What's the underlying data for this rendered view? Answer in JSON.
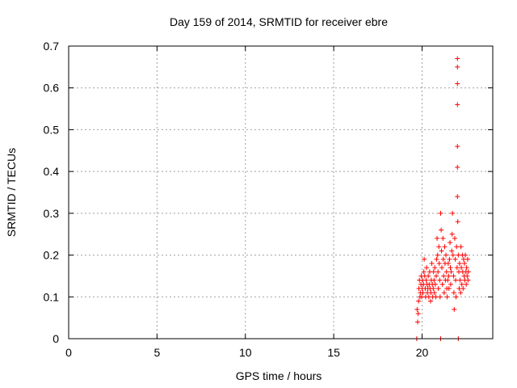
{
  "chart_data": {
    "type": "scatter",
    "title": "Day 159 of 2014, SRMTID for receiver ebre",
    "xlabel": "GPS time / hours",
    "ylabel": "SRMTID / TECUs",
    "xlim": [
      0,
      24
    ],
    "ylim": [
      0,
      0.7
    ],
    "grid": true,
    "marker": "+",
    "x_ticks": [
      0,
      5,
      10,
      15,
      20
    ],
    "x_tick_labels": [
      "0",
      "5",
      "10",
      "15",
      "20"
    ],
    "y_ticks": [
      0,
      0.1,
      0.2,
      0.3,
      0.4,
      0.5,
      0.6,
      0.7
    ],
    "y_tick_labels": [
      "0",
      "0.1",
      "0.2",
      "0.3",
      "0.4",
      "0.5",
      "0.6",
      "0.7"
    ],
    "series": [
      {
        "name": "SRMTID",
        "color": "#ff0000",
        "points": [
          [
            19.7,
            0.0
          ],
          [
            19.72,
            0.07
          ],
          [
            19.75,
            0.04
          ],
          [
            19.78,
            0.06
          ],
          [
            19.8,
            0.09
          ],
          [
            19.82,
            0.12
          ],
          [
            19.85,
            0.14
          ],
          [
            19.88,
            0.1
          ],
          [
            19.9,
            0.11
          ],
          [
            19.93,
            0.13
          ],
          [
            19.95,
            0.15
          ],
          [
            19.98,
            0.1
          ],
          [
            20.0,
            0.12
          ],
          [
            20.03,
            0.14
          ],
          [
            20.05,
            0.11
          ],
          [
            20.08,
            0.13
          ],
          [
            20.1,
            0.16
          ],
          [
            20.12,
            0.19
          ],
          [
            20.15,
            0.15
          ],
          [
            20.18,
            0.12
          ],
          [
            20.2,
            0.1
          ],
          [
            20.23,
            0.14
          ],
          [
            20.25,
            0.17
          ],
          [
            20.28,
            0.13
          ],
          [
            20.3,
            0.11
          ],
          [
            20.33,
            0.12
          ],
          [
            20.35,
            0.15
          ],
          [
            20.38,
            0.1
          ],
          [
            20.4,
            0.13
          ],
          [
            20.43,
            0.16
          ],
          [
            20.45,
            0.12
          ],
          [
            20.48,
            0.09
          ],
          [
            20.5,
            0.11
          ],
          [
            20.52,
            0.14
          ],
          [
            20.55,
            0.18
          ],
          [
            20.58,
            0.13
          ],
          [
            20.6,
            0.1
          ],
          [
            20.63,
            0.12
          ],
          [
            20.65,
            0.16
          ],
          [
            20.68,
            0.14
          ],
          [
            20.7,
            0.11
          ],
          [
            20.72,
            0.17
          ],
          [
            20.75,
            0.13
          ],
          [
            20.78,
            0.1
          ],
          [
            20.8,
            0.15
          ],
          [
            20.82,
            0.19
          ],
          [
            20.85,
            0.24
          ],
          [
            20.88,
            0.2
          ],
          [
            20.9,
            0.16
          ],
          [
            20.92,
            0.12
          ],
          [
            20.95,
            0.22
          ],
          [
            20.97,
            0.18
          ],
          [
            21.0,
            0.14
          ],
          [
            21.02,
            0.1
          ],
          [
            21.05,
            0.3
          ],
          [
            21.05,
            0.0
          ],
          [
            21.08,
            0.26
          ],
          [
            21.1,
            0.21
          ],
          [
            21.12,
            0.17
          ],
          [
            21.15,
            0.13
          ],
          [
            21.18,
            0.24
          ],
          [
            21.2,
            0.19
          ],
          [
            21.22,
            0.15
          ],
          [
            21.25,
            0.11
          ],
          [
            21.28,
            0.22
          ],
          [
            21.3,
            0.18
          ],
          [
            21.32,
            0.14
          ],
          [
            21.35,
            0.2
          ],
          [
            21.38,
            0.16
          ],
          [
            21.4,
            0.12
          ],
          [
            21.42,
            0.1
          ],
          [
            21.45,
            0.14
          ],
          [
            21.48,
            0.18
          ],
          [
            21.5,
            0.15
          ],
          [
            21.52,
            0.12
          ],
          [
            21.55,
            0.19
          ],
          [
            21.58,
            0.23
          ],
          [
            21.6,
            0.17
          ],
          [
            21.62,
            0.13
          ],
          [
            21.65,
            0.16
          ],
          [
            21.68,
            0.21
          ],
          [
            21.7,
            0.25
          ],
          [
            21.72,
            0.3
          ],
          [
            21.75,
            0.2
          ],
          [
            21.78,
            0.15
          ],
          [
            21.8,
            0.11
          ],
          [
            21.82,
            0.07
          ],
          [
            21.85,
            0.24
          ],
          [
            21.88,
            0.19
          ],
          [
            21.9,
            0.14
          ],
          [
            21.92,
            0.1
          ],
          [
            21.95,
            0.22
          ],
          [
            21.98,
            0.17
          ],
          [
            22.0,
            0.34
          ],
          [
            22.0,
            0.41
          ],
          [
            22.0,
            0.46
          ],
          [
            22.0,
            0.56
          ],
          [
            22.0,
            0.61
          ],
          [
            22.0,
            0.65
          ],
          [
            22.0,
            0.67
          ],
          [
            22.02,
            0.28
          ],
          [
            22.05,
            0.2
          ],
          [
            22.05,
            0.0
          ],
          [
            22.08,
            0.16
          ],
          [
            22.1,
            0.12
          ],
          [
            22.12,
            0.18
          ],
          [
            22.15,
            0.14
          ],
          [
            22.18,
            0.11
          ],
          [
            22.2,
            0.22
          ],
          [
            22.22,
            0.17
          ],
          [
            22.25,
            0.13
          ],
          [
            22.28,
            0.2
          ],
          [
            22.3,
            0.16
          ],
          [
            22.32,
            0.12
          ],
          [
            22.35,
            0.19
          ],
          [
            22.38,
            0.15
          ],
          [
            22.4,
            0.18
          ],
          [
            22.42,
            0.14
          ],
          [
            22.45,
            0.2
          ],
          [
            22.48,
            0.16
          ],
          [
            22.5,
            0.13
          ],
          [
            22.52,
            0.17
          ],
          [
            22.55,
            0.15
          ],
          [
            22.58,
            0.19
          ],
          [
            22.6,
            0.14
          ],
          [
            22.62,
            0.16
          ]
        ]
      }
    ]
  }
}
